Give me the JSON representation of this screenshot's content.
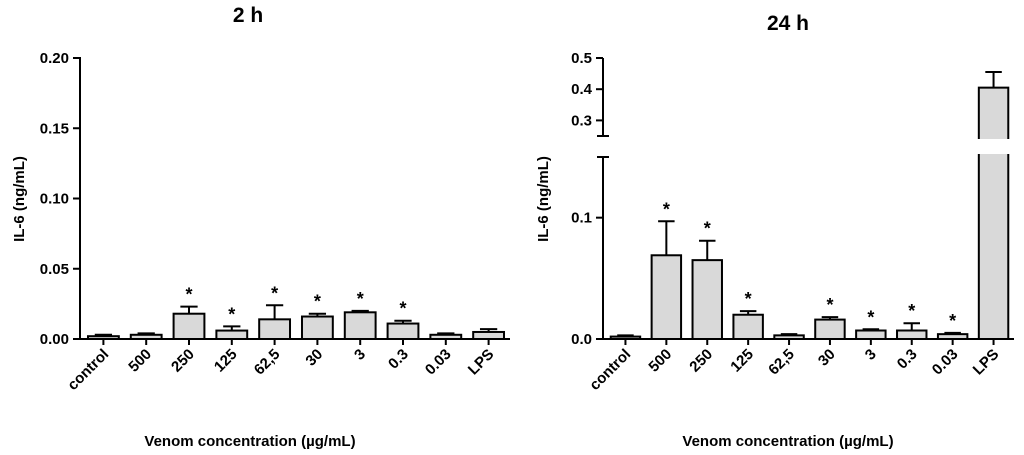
{
  "chart_data": [
    {
      "type": "bar",
      "title": "2 h",
      "xlabel": "Venom concentration (µg/mL)",
      "ylabel": "IL-6 (ng/mL)",
      "ylim": [
        0,
        0.2
      ],
      "yticks": [
        "0.00",
        "0.05",
        "0.10",
        "0.15",
        "0.20"
      ],
      "grid": false,
      "categories": [
        "control",
        "500",
        "250",
        "125",
        "62,5",
        "30",
        "3",
        "0.3",
        "0.03",
        "LPS"
      ],
      "values": [
        0.002,
        0.003,
        0.018,
        0.006,
        0.014,
        0.016,
        0.019,
        0.011,
        0.003,
        0.005
      ],
      "errors": [
        0.001,
        0.001,
        0.005,
        0.003,
        0.01,
        0.002,
        0.001,
        0.002,
        0.001,
        0.002
      ],
      "significance": [
        "",
        "",
        "*",
        "*",
        "*",
        "*",
        "*",
        "*",
        "",
        ""
      ],
      "bar_color": "#d9d9d9"
    },
    {
      "type": "bar",
      "title": "24 h",
      "xlabel": "Venom concentration (µg/mL)",
      "ylabel": "IL-6 (ng/mL)",
      "y_axis_break": true,
      "ylim_lower": [
        0,
        0.15
      ],
      "ylim_upper": [
        0.25,
        0.5
      ],
      "yticks_lower": [
        "0.0",
        "0.1"
      ],
      "yticks_upper": [
        "0.3",
        "0.4",
        "0.5"
      ],
      "grid": false,
      "categories": [
        "control",
        "500",
        "250",
        "125",
        "62,5",
        "30",
        "3",
        "0.3",
        "0.03",
        "LPS"
      ],
      "values": [
        0.002,
        0.069,
        0.065,
        0.02,
        0.003,
        0.016,
        0.007,
        0.007,
        0.004,
        0.405
      ],
      "errors": [
        0.001,
        0.028,
        0.016,
        0.003,
        0.001,
        0.002,
        0.001,
        0.006,
        0.001,
        0.05
      ],
      "significance": [
        "",
        "*",
        "*",
        "*",
        "",
        "*",
        "*",
        "*",
        "*",
        ""
      ],
      "bar_color": "#d9d9d9"
    }
  ]
}
